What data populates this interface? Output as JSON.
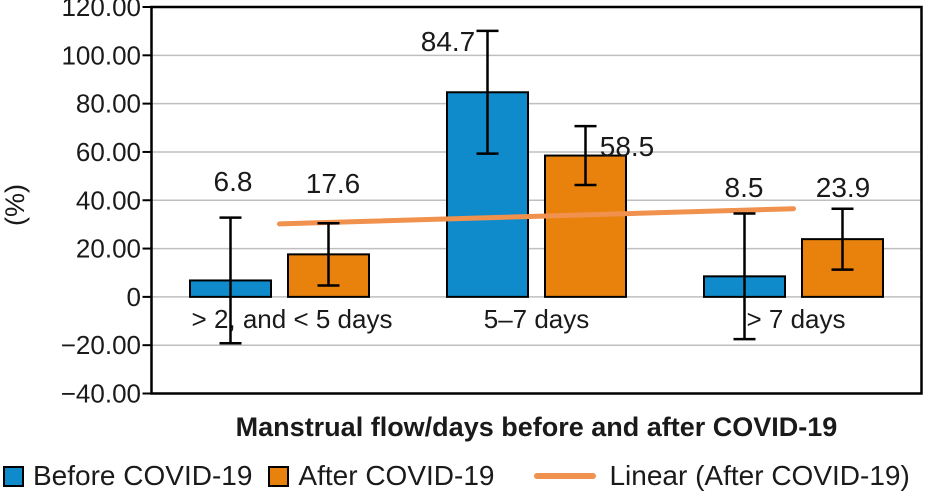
{
  "chart_data": {
    "type": "bar",
    "title": "",
    "xlabel": "Manstrual flow/days before and after COVID-19",
    "ylabel": "(%)",
    "categories": [
      "> 2, and < 5 days",
      "5–7 days",
      "> 7 days"
    ],
    "series": [
      {
        "name": "Before COVID-19",
        "color": "#0F8BCB",
        "values": [
          6.8,
          84.7,
          8.5
        ],
        "error_plus_minus": [
          26.0,
          25.4,
          26.0
        ]
      },
      {
        "name": "After COVID-19",
        "color": "#E8820C",
        "values": [
          17.6,
          58.5,
          23.9
        ],
        "error_plus_minus": [
          12.9,
          12.2,
          12.6
        ]
      }
    ],
    "trendline": {
      "name": "Linear (After COVID-19)",
      "color": "#F0914E",
      "values": [
        30.2,
        36.5
      ]
    },
    "ylim": [
      -40,
      120
    ],
    "ytick_step": 20,
    "ytick_labels": [
      "120.00",
      "100.00",
      "80.00",
      "60.00",
      "40.00",
      "20.00",
      "0",
      "−20.00",
      "−40.00"
    ],
    "grid": true,
    "gridline_color": "#BFBFBF",
    "axis_color": "#000000",
    "legend_position": "bottom"
  }
}
